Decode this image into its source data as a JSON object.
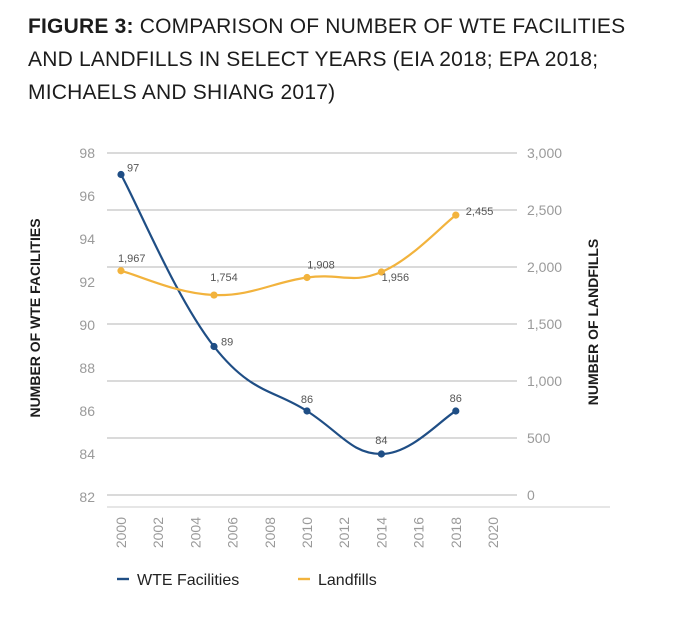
{
  "figure": {
    "label": "FIGURE 3:",
    "title": "COMPARISON OF NUMBER OF WTE FACILITIES AND LANDFILLS IN SELECT YEARS (EIA 2018; EPA 2018; MICHAELS AND SHIANG 2017)",
    "title_lines": [
      "COMPARISON OF NUMBER OF WTE FACILITIES",
      "AND LANDFILLS IN SELECT YEARS (EIA 2018; EPA 2018;",
      "MICHAELS AND SHIANG 2017)"
    ]
  },
  "chart_data": {
    "type": "line",
    "title": "",
    "xlabel": "",
    "ylabel_left": "NUMBER OF WTE FACILITIES",
    "ylabel_right": "NUMBER OF LANDFILLS",
    "x_ticks": [
      2000,
      2002,
      2004,
      2006,
      2008,
      2010,
      2012,
      2014,
      2016,
      2018,
      2020
    ],
    "x_tick_labels": [
      "2000",
      "2002",
      "2004",
      "2006",
      "2008",
      "2010",
      "2012",
      "2014",
      "2016",
      "2018",
      "2020"
    ],
    "xlim": [
      2000,
      2020
    ],
    "ylim_left": [
      82,
      98
    ],
    "y_ticks_left": [
      82,
      84,
      86,
      88,
      90,
      92,
      94,
      96,
      98
    ],
    "y_tick_labels_left": [
      "82",
      "84",
      "86",
      "88",
      "90",
      "92",
      "94",
      "96",
      "98"
    ],
    "ylim_right": [
      0,
      3000
    ],
    "y_ticks_right": [
      0,
      500,
      1000,
      1500,
      2000,
      2500,
      3000
    ],
    "y_tick_labels_right": [
      "0",
      "500",
      "1,000",
      "1,500",
      "2,000",
      "2,500",
      "3,000"
    ],
    "grid": "horizontal",
    "legend": "bottom",
    "series": [
      {
        "name": "WTE Facilities",
        "axis": "left",
        "color": "#1f4e85",
        "x": [
          2000,
          2005,
          2010,
          2014,
          2018
        ],
        "values": [
          97,
          89,
          86,
          84,
          86
        ],
        "labels": [
          "97",
          "89",
          "86",
          "84",
          "86"
        ]
      },
      {
        "name": "Landfills",
        "axis": "right",
        "color": "#f2b33d",
        "x": [
          2000,
          2005,
          2010,
          2014,
          2018
        ],
        "values": [
          1967,
          1754,
          1908,
          1956,
          2455
        ],
        "labels": [
          "1,967",
          "1,754",
          "1,908",
          "1,956",
          "2,455"
        ]
      }
    ]
  }
}
